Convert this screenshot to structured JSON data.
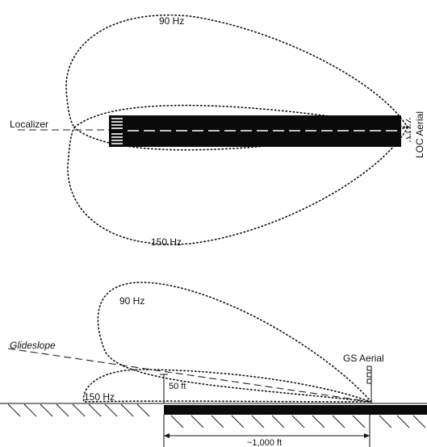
{
  "top_diagram": {
    "lobe_upper_label": "90 Hz",
    "lobe_lower_label": "150 Hz",
    "beam_label": "Localizer",
    "antenna_label": "LOC Aerial"
  },
  "bottom_diagram": {
    "lobe_upper_label": "90 Hz",
    "lobe_lower_label": "150 Hz",
    "beam_label": "Glideslope",
    "antenna_label": "GS Aerial",
    "height_label": "50 ft",
    "distance_label": "~1,000 ft"
  },
  "colors": {
    "ink": "#111111",
    "runway": "#0a0a0a",
    "background": "#ffffff"
  }
}
